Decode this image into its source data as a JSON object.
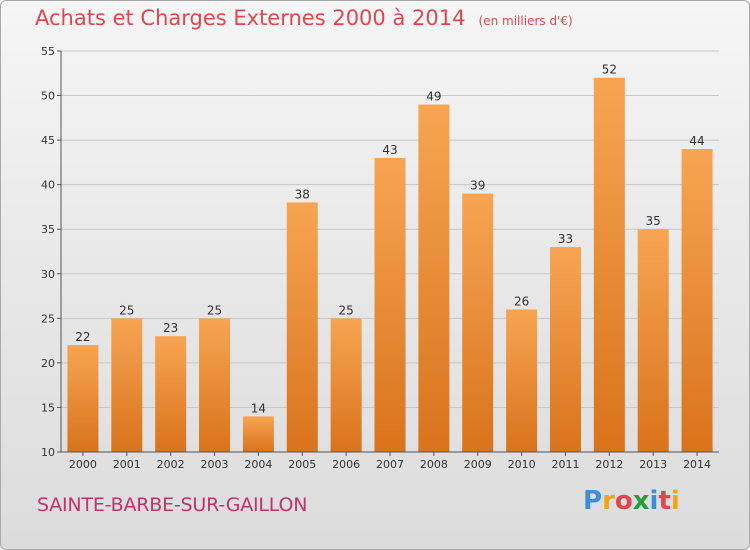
{
  "header": {
    "title": "Achats et Charges Externes 2000 à 2014",
    "unit": "(en milliers d'€)"
  },
  "footer": {
    "location": "SAINTE-BARBE-SUR-GAILLON",
    "brand": "Proxiti"
  },
  "colors": {
    "title": "#e0464c",
    "location": "#c1336a",
    "bar_light": "#f7a553",
    "bar_dark": "#d9731c"
  },
  "chart_data": {
    "type": "bar",
    "categories": [
      "2000",
      "2001",
      "2002",
      "2003",
      "2004",
      "2005",
      "2006",
      "2007",
      "2008",
      "2009",
      "2010",
      "2011",
      "2012",
      "2013",
      "2014"
    ],
    "values": [
      22,
      25,
      23,
      25,
      14,
      38,
      25,
      43,
      49,
      39,
      26,
      33,
      52,
      35,
      44
    ],
    "title": "Achats et Charges Externes 2000 à 2014",
    "subtitle": "(en milliers d'€)",
    "xlabel": "",
    "ylabel": "",
    "ylim": [
      10,
      55
    ],
    "yticks": [
      10,
      15,
      20,
      25,
      30,
      35,
      40,
      45,
      50,
      55
    ],
    "grid": true,
    "legend": "none",
    "data_labels": true
  }
}
